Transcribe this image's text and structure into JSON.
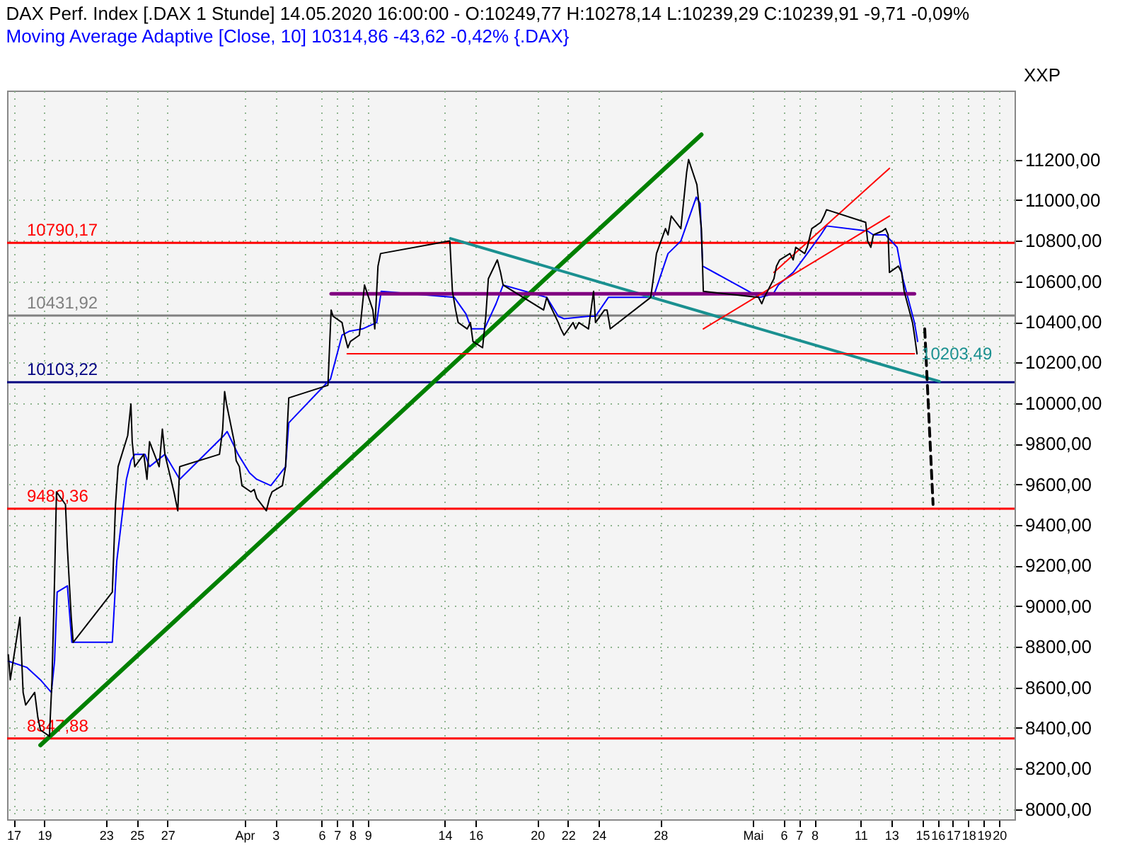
{
  "chart_data": {
    "type": "line",
    "title": "DAX Perf. Index [.DAX  1 Stunde] 14.05.2020 16:00:00 - O:10249,77 H:10278,14 L:10239,29 C:10239,91 -9,71 -0,09%",
    "subtitle": "Moving Average Adaptive [Close, 10] 10314,86 -43,62 -0,42% {.DAX}",
    "ylabel": "XXP",
    "xlim": [
      "2020-03-16T14:00",
      "2020-05-21T00:00"
    ],
    "ylim": [
      7950,
      11540
    ],
    "xticks": [
      {
        "value": "2020-03-17",
        "label": "17"
      },
      {
        "value": "2020-03-19",
        "label": "19"
      },
      {
        "value": "2020-03-23",
        "label": "23"
      },
      {
        "value": "2020-03-25",
        "label": "25"
      },
      {
        "value": "2020-03-27",
        "label": "27"
      },
      {
        "value": "2020-04-01",
        "label": "Apr"
      },
      {
        "value": "2020-04-03",
        "label": "3"
      },
      {
        "value": "2020-04-06",
        "label": "6"
      },
      {
        "value": "2020-04-07",
        "label": "7"
      },
      {
        "value": "2020-04-08",
        "label": "8"
      },
      {
        "value": "2020-04-09",
        "label": "9"
      },
      {
        "value": "2020-04-14",
        "label": "14"
      },
      {
        "value": "2020-04-16",
        "label": "16"
      },
      {
        "value": "2020-04-20",
        "label": "20"
      },
      {
        "value": "2020-04-22",
        "label": "22"
      },
      {
        "value": "2020-04-24",
        "label": "24"
      },
      {
        "value": "2020-04-28",
        "label": "28"
      },
      {
        "value": "2020-05-04",
        "label": "Mai"
      },
      {
        "value": "2020-05-06",
        "label": "6"
      },
      {
        "value": "2020-05-07",
        "label": "7"
      },
      {
        "value": "2020-05-08",
        "label": "8"
      },
      {
        "value": "2020-05-11",
        "label": "11"
      },
      {
        "value": "2020-05-13",
        "label": "13"
      },
      {
        "value": "2020-05-15",
        "label": "15"
      },
      {
        "value": "2020-05-16",
        "label": "16"
      },
      {
        "value": "2020-05-17",
        "label": "17"
      },
      {
        "value": "2020-05-18",
        "label": "18"
      },
      {
        "value": "2020-05-19",
        "label": "19"
      },
      {
        "value": "2020-05-20",
        "label": "20"
      }
    ],
    "yticks": [
      {
        "value": 8000,
        "label": "8000,00"
      },
      {
        "value": 8200,
        "label": "8200,00"
      },
      {
        "value": 8400,
        "label": "8400,00"
      },
      {
        "value": 8600,
        "label": "8600,00"
      },
      {
        "value": 8800,
        "label": "8800,00"
      },
      {
        "value": 9000,
        "label": "9000,00"
      },
      {
        "value": 9200,
        "label": "9200,00"
      },
      {
        "value": 9400,
        "label": "9400,00"
      },
      {
        "value": 9600,
        "label": "9600,00"
      },
      {
        "value": 9800,
        "label": "9800,00"
      },
      {
        "value": 10000,
        "label": "10000,00"
      },
      {
        "value": 10200,
        "label": "10200,00"
      },
      {
        "value": 10400,
        "label": "10400,00"
      },
      {
        "value": 10600,
        "label": "10600,00"
      },
      {
        "value": 10800,
        "label": "10800,00"
      },
      {
        "value": 11000,
        "label": "11000,00"
      },
      {
        "value": 11200,
        "label": "11200,00"
      }
    ],
    "grid": true,
    "series": [
      {
        "color": "#000000",
        "x": [
          "2020-03-16T16:00",
          "2020-03-16T19:00",
          "2020-03-17T10:00",
          "2020-03-17T15:00",
          "2020-03-17T19:00",
          "2020-03-18T09:00",
          "2020-03-18T14:00",
          "2020-03-18T18:00",
          "2020-03-19T08:00",
          "2020-03-19T12:00",
          "2020-03-19T16:00",
          "2020-03-19T19:00",
          "2020-03-20T09:00",
          "2020-03-20T12:00",
          "2020-03-20T18:00",
          "2020-03-20T21:00",
          "2020-03-23T10:00",
          "2020-03-23T15:00",
          "2020-03-23T19:00",
          "2020-03-24T10:00",
          "2020-03-24T15:00",
          "2020-03-24T17:00",
          "2020-03-24T21:00",
          "2020-03-25T11:00",
          "2020-03-25T16:00",
          "2020-03-25T20:00",
          "2020-03-26T11:00",
          "2020-03-26T16:00",
          "2020-03-26T20:00",
          "2020-03-27T10:00",
          "2020-03-27T16:00",
          "2020-03-27T19:00",
          "2020-03-30T09:00",
          "2020-03-30T14:00",
          "2020-03-30T17:00",
          "2020-03-30T20:00",
          "2020-03-31T08:00",
          "2020-03-31T11:00",
          "2020-03-31T16:00",
          "2020-03-31T20:00",
          "2020-04-01T10:00",
          "2020-04-01T15:00",
          "2020-04-01T19:00",
          "2020-04-02T10:00",
          "2020-04-02T15:00",
          "2020-04-02T19:00",
          "2020-04-03T11:00",
          "2020-04-03T16:00",
          "2020-04-03T19:00",
          "2020-04-03T21:00",
          "2020-04-06T10:00",
          "2020-04-06T15:00",
          "2020-04-06T18:00",
          "2020-04-07T08:00",
          "2020-04-07T12:00",
          "2020-04-07T17:00",
          "2020-04-07T21:00",
          "2020-04-08T11:00",
          "2020-04-08T16:00",
          "2020-04-08T19:00",
          "2020-04-09T08:00",
          "2020-04-09T11:00",
          "2020-04-09T16:00",
          "2020-04-09T20:00",
          "2020-04-14T08:00",
          "2020-04-14T12:00",
          "2020-04-14T17:00",
          "2020-04-14T21:00",
          "2020-04-15T11:00",
          "2020-04-15T16:00",
          "2020-04-15T20:00",
          "2020-04-16T11:00",
          "2020-04-16T16:00",
          "2020-04-16T20:00",
          "2020-04-17T10:00",
          "2020-04-17T15:00",
          "2020-04-17T19:00",
          "2020-04-20T10:00",
          "2020-04-20T15:00",
          "2020-04-20T19:00",
          "2020-04-21T09:00",
          "2020-04-21T13:00",
          "2020-04-21T18:00",
          "2020-04-22T08:00",
          "2020-04-22T12:00",
          "2020-04-22T17:00",
          "2020-04-23T08:00",
          "2020-04-23T12:00",
          "2020-04-23T16:00",
          "2020-04-23T19:00",
          "2020-04-24T09:00",
          "2020-04-24T13:00",
          "2020-04-24T18:00",
          "2020-04-27T09:00",
          "2020-04-27T13:00",
          "2020-04-27T18:00",
          "2020-04-28T08:00",
          "2020-04-28T12:00",
          "2020-04-28T17:00",
          "2020-04-29T08:00",
          "2020-04-29T12:00",
          "2020-04-29T17:00",
          "2020-04-29T20:00",
          "2020-04-30T09:00",
          "2020-04-30T12:00",
          "2020-04-30T16:00",
          "2020-04-30T19:00",
          "2020-05-04T09:00",
          "2020-05-04T14:00",
          "2020-05-04T18:00",
          "2020-05-05T09:00",
          "2020-05-05T13:00",
          "2020-05-05T18:00",
          "2020-05-06T10:00",
          "2020-05-06T15:00",
          "2020-05-06T19:00",
          "2020-05-07T09:00",
          "2020-05-07T13:00",
          "2020-05-07T20:00",
          "2020-05-08T10:00",
          "2020-05-08T15:00",
          "2020-05-08T19:00",
          "2020-05-11T08:00",
          "2020-05-11T11:00",
          "2020-05-11T16:00",
          "2020-05-11T20:00",
          "2020-05-12T10:00",
          "2020-05-12T15:00",
          "2020-05-12T19:00",
          "2020-05-12T21:00",
          "2020-05-13T11:00",
          "2020-05-13T16:00",
          "2020-05-13T20:00",
          "2020-05-14T09:00",
          "2020-05-14T12:00",
          "2020-05-14T16:00"
        ],
        "values": [
          8760,
          8637,
          8945,
          8575,
          8513,
          8575,
          8451,
          8390,
          8359,
          8637,
          9131,
          9563,
          9501,
          9285,
          8945,
          8822,
          9069,
          9501,
          9687,
          9841,
          9996,
          9810,
          9687,
          9748,
          9625,
          9810,
          9687,
          9872,
          9748,
          9563,
          9470,
          9687,
          9748,
          9872,
          10057,
          9996,
          9810,
          9717,
          9687,
          9594,
          9563,
          9575,
          9532,
          9470,
          9532,
          9563,
          9594,
          9687,
          9903,
          10026,
          10088,
          10459,
          10428,
          10397,
          10335,
          10273,
          10304,
          10335,
          10490,
          10582,
          10459,
          10366,
          10675,
          10737,
          10799,
          10551,
          10459,
          10397,
          10366,
          10397,
          10304,
          10273,
          10428,
          10613,
          10706,
          10644,
          10582,
          10459,
          10521,
          10490,
          10397,
          10366,
          10335,
          10397,
          10366,
          10397,
          10366,
          10459,
          10551,
          10397,
          10459,
          10459,
          10366,
          10521,
          10613,
          10737,
          10860,
          10829,
          10922,
          10860,
          10984,
          11138,
          11200,
          11076,
          10984,
          10860,
          10551,
          10521,
          10490,
          10521,
          10613,
          10675,
          10706,
          10737,
          10706,
          10768,
          10737,
          10768,
          10860,
          10891,
          10922,
          10953,
          10891,
          10799,
          10768,
          10829,
          10848,
          10860,
          10829,
          10644,
          10675,
          10644,
          10551,
          10397,
          10335,
          10243
        ]
      },
      {
        "color": "#0000ff",
        "x": [
          "2020-03-16T16:00",
          "2020-03-17T21:00",
          "2020-03-18T18:00",
          "2020-03-19T11:00",
          "2020-03-19T16:00",
          "2020-03-19T20:00",
          "2020-03-20T12:00",
          "2020-03-20T19:00",
          "2020-03-23T10:00",
          "2020-03-23T17:00",
          "2020-03-24T08:00",
          "2020-03-24T15:00",
          "2020-03-24T21:00",
          "2020-03-25T13:00",
          "2020-03-25T20:00",
          "2020-03-26T20:00",
          "2020-03-27T19:00",
          "2020-03-30T16:00",
          "2020-03-30T21:00",
          "2020-03-31T14:00",
          "2020-04-01T08:00",
          "2020-04-01T19:00",
          "2020-04-02T17:00",
          "2020-04-03T16:00",
          "2020-04-03T21:00",
          "2020-04-06T14:00",
          "2020-04-07T08:00",
          "2020-04-07T19:00",
          "2020-04-08T16:00",
          "2020-04-09T14:00",
          "2020-04-09T21:00",
          "2020-04-14T15:00",
          "2020-04-15T09:00",
          "2020-04-15T18:00",
          "2020-04-16T14:00",
          "2020-04-17T08:00",
          "2020-04-17T19:00",
          "2020-04-20T15:00",
          "2020-04-21T09:00",
          "2020-04-21T18:00",
          "2020-04-23T08:00",
          "2020-04-23T19:00",
          "2020-04-24T15:00",
          "2020-04-27T13:00",
          "2020-04-28T12:00",
          "2020-04-29T08:00",
          "2020-04-30T08:00",
          "2020-04-30T14:00",
          "2020-04-30T18:00",
          "2020-05-04T11:00",
          "2020-05-05T08:00",
          "2020-05-05T16:00",
          "2020-05-06T15:00",
          "2020-05-07T13:00",
          "2020-05-08T10:00",
          "2020-05-08T19:00",
          "2020-05-11T11:00",
          "2020-05-11T20:00",
          "2020-05-12T15:00",
          "2020-05-13T09:00",
          "2020-05-13T18:00",
          "2020-05-14T12:00",
          "2020-05-14T17:00"
        ],
        "values": [
          8729,
          8698,
          8637,
          8575,
          8729,
          9069,
          9100,
          8822,
          8822,
          9223,
          9625,
          9717,
          9748,
          9748,
          9687,
          9748,
          9625,
          9841,
          9860,
          9748,
          9656,
          9625,
          9594,
          9687,
          9903,
          10119,
          10335,
          10354,
          10366,
          10397,
          10551,
          10521,
          10440,
          10366,
          10366,
          10490,
          10582,
          10521,
          10428,
          10416,
          10428,
          10428,
          10521,
          10521,
          10737,
          10799,
          11015,
          10984,
          10675,
          10521,
          10539,
          10582,
          10644,
          10737,
          10829,
          10873,
          10848,
          10829,
          10829,
          10768,
          10613,
          10397,
          10304
        ]
      },
      {
        "color": "#008000",
        "x": [
          "2020-03-18T18:00",
          "2020-04-30T16:00"
        ],
        "values": [
          8315,
          11323
        ]
      },
      {
        "color": "#1a9090",
        "x": [
          "2020-04-14T09:00",
          "2020-05-16T03:00"
        ],
        "values": [
          10811,
          10107
        ]
      },
      {
        "color": "#800080",
        "x": [
          "2020-04-06T15:00",
          "2020-05-14T12:00"
        ],
        "values": [
          10539,
          10539
        ]
      },
      {
        "color": "#ff0000",
        "x": [
          "2020-04-07T16:00",
          "2020-05-14T12:00"
        ],
        "values": [
          10243,
          10243
        ]
      },
      {
        "color": "#ff0000",
        "x": [
          "2020-04-30T19:00",
          "2020-05-12T21:00"
        ],
        "values": [
          10366,
          10922
        ]
      },
      {
        "color": "#ff0000",
        "x": [
          "2020-05-05T09:00",
          "2020-05-12T21:00"
        ],
        "values": [
          10644,
          11157
        ]
      },
      {
        "color": "#000000",
        "line_style": "dashed",
        "x": [
          "2020-05-15T04:00",
          "2020-05-15T17:00"
        ],
        "values": [
          10366,
          9501
        ]
      }
    ],
    "ref_lines": [
      {
        "axis": "y",
        "value": 10790.17,
        "label": "10790,17",
        "color": "#ff0000"
      },
      {
        "axis": "y",
        "value": 10431.92,
        "label": "10431,92",
        "color": "#808080"
      },
      {
        "axis": "y",
        "value": 10103.22,
        "label": "10103,22",
        "color": "#000080"
      },
      {
        "axis": "y",
        "value": 9480.36,
        "label": "9480,36",
        "color": "#ff0000"
      },
      {
        "axis": "y",
        "value": 8347.88,
        "label": "8347,88",
        "color": "#ff0000"
      }
    ],
    "annotations": [
      {
        "text": "10203,49",
        "x": "2020-05-14T16:00",
        "y": 10243
      }
    ]
  }
}
